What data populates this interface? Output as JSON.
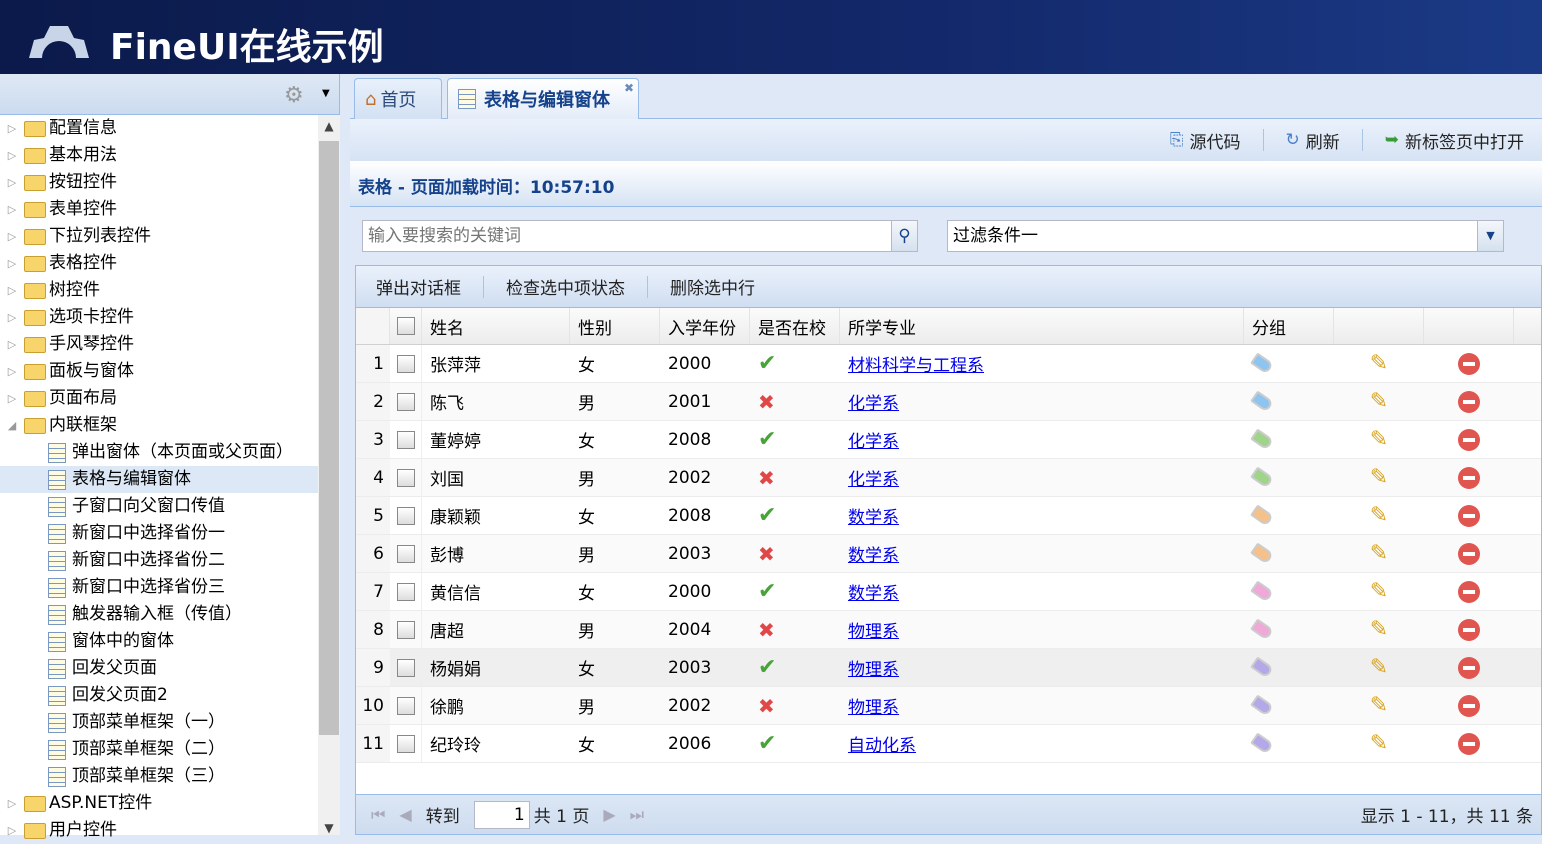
{
  "app": {
    "title": "FineUI在线示例"
  },
  "tree": {
    "items": [
      {
        "label": "配置信息",
        "type": "folder"
      },
      {
        "label": "基本用法",
        "type": "folder"
      },
      {
        "label": "按钮控件",
        "type": "folder"
      },
      {
        "label": "表单控件",
        "type": "folder"
      },
      {
        "label": "下拉列表控件",
        "type": "folder"
      },
      {
        "label": "表格控件",
        "type": "folder"
      },
      {
        "label": "树控件",
        "type": "folder"
      },
      {
        "label": "选项卡控件",
        "type": "folder"
      },
      {
        "label": "手风琴控件",
        "type": "folder"
      },
      {
        "label": "面板与窗体",
        "type": "folder"
      },
      {
        "label": "页面布局",
        "type": "folder"
      },
      {
        "label": "内联框架",
        "type": "folder-open"
      },
      {
        "label": "弹出窗体（本页面或父页面）",
        "type": "page"
      },
      {
        "label": "表格与编辑窗体",
        "type": "page",
        "selected": true
      },
      {
        "label": "子窗口向父窗口传值",
        "type": "page"
      },
      {
        "label": "新窗口中选择省份一",
        "type": "page"
      },
      {
        "label": "新窗口中选择省份二",
        "type": "page"
      },
      {
        "label": "新窗口中选择省份三",
        "type": "page"
      },
      {
        "label": "触发器输入框（传值）",
        "type": "page"
      },
      {
        "label": "窗体中的窗体",
        "type": "page"
      },
      {
        "label": "回发父页面",
        "type": "page"
      },
      {
        "label": "回发父页面2",
        "type": "page"
      },
      {
        "label": "顶部菜单框架（一）",
        "type": "page"
      },
      {
        "label": "顶部菜单框架（二）",
        "type": "page"
      },
      {
        "label": "顶部菜单框架（三）",
        "type": "page"
      },
      {
        "label": "ASP.NET控件",
        "type": "folder"
      },
      {
        "label": "用户控件",
        "type": "folder"
      }
    ]
  },
  "tabs": [
    {
      "label": "首页",
      "icon": "home-icon"
    },
    {
      "label": "表格与编辑窗体",
      "icon": "grid-page-icon",
      "active": true
    }
  ],
  "toolbar": {
    "source": "源代码",
    "refresh": "刷新",
    "open_new": "新标签页中打开"
  },
  "panel": {
    "title": "表格 - 页面加载时间：10:57:10"
  },
  "search": {
    "placeholder": "输入要搜索的关键词",
    "filter": "过滤条件一"
  },
  "grid_toolbar": {
    "b1": "弹出对话框",
    "b2": "检查选中项状态",
    "b3": "删除选中行"
  },
  "columns": [
    "姓名",
    "性别",
    "入学年份",
    "是否在校",
    "所学专业",
    "分组"
  ],
  "rows": [
    {
      "n": "1",
      "name": "张萍萍",
      "sex": "女",
      "year": "2000",
      "atschool": true,
      "major": "材料科学与工程系",
      "tag": "#8ec5f0"
    },
    {
      "n": "2",
      "name": "陈飞",
      "sex": "男",
      "year": "2001",
      "atschool": false,
      "major": "化学系",
      "tag": "#8ec5f0"
    },
    {
      "n": "3",
      "name": "董婷婷",
      "sex": "女",
      "year": "2008",
      "atschool": true,
      "major": "化学系",
      "tag": "#9fd48a"
    },
    {
      "n": "4",
      "name": "刘国",
      "sex": "男",
      "year": "2002",
      "atschool": false,
      "major": "化学系",
      "tag": "#9fd48a"
    },
    {
      "n": "5",
      "name": "康颖颖",
      "sex": "女",
      "year": "2008",
      "atschool": true,
      "major": "数学系",
      "tag": "#f5c08a"
    },
    {
      "n": "6",
      "name": "彭博",
      "sex": "男",
      "year": "2003",
      "atschool": false,
      "major": "数学系",
      "tag": "#f5c08a"
    },
    {
      "n": "7",
      "name": "黄信信",
      "sex": "女",
      "year": "2000",
      "atschool": true,
      "major": "数学系",
      "tag": "#f0a8d8"
    },
    {
      "n": "8",
      "name": "唐超",
      "sex": "男",
      "year": "2004",
      "atschool": false,
      "major": "物理系",
      "tag": "#f0a8d8"
    },
    {
      "n": "9",
      "name": "杨娟娟",
      "sex": "女",
      "year": "2003",
      "atschool": true,
      "major": "物理系",
      "tag": "#b4a8e8"
    },
    {
      "n": "10",
      "name": "徐鹏",
      "sex": "男",
      "year": "2002",
      "atschool": false,
      "major": "物理系",
      "tag": "#b4a8e8"
    },
    {
      "n": "11",
      "name": "纪玲玲",
      "sex": "女",
      "year": "2006",
      "atschool": true,
      "major": "自动化系",
      "tag": "#b4a8e8"
    }
  ],
  "pager": {
    "goto": "转到",
    "page": "1",
    "total_pages": "共 1 页",
    "info": "显示 1 - 11，共 11 条"
  }
}
